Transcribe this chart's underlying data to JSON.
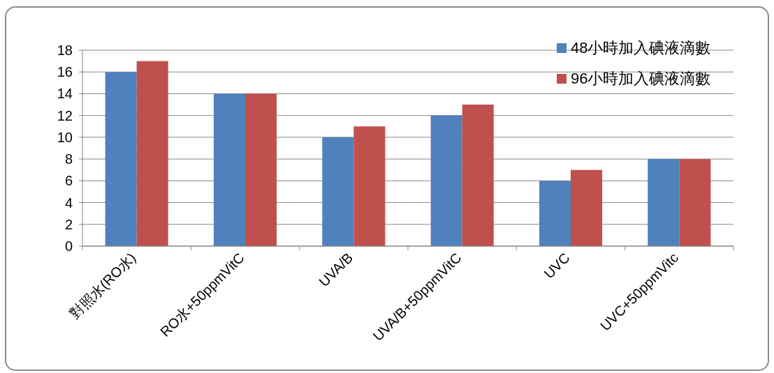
{
  "chart_data": {
    "type": "bar",
    "categories": [
      "對照水(RO水)",
      "RO水+50ppmVitC",
      "UVA/B",
      "UVA/B+50ppmVitC",
      "UVC",
      "UVC+50ppmVitc"
    ],
    "series": [
      {
        "name": "48小時加入碘液滴數",
        "color": "#4f81bd",
        "values": [
          16,
          14,
          10,
          12,
          6,
          8
        ]
      },
      {
        "name": "96小時加入碘液滴數",
        "color": "#c0504d",
        "values": [
          17,
          14,
          11,
          13,
          7,
          8
        ]
      }
    ],
    "ylim": [
      0,
      18
    ],
    "yticks": [
      0,
      2,
      4,
      6,
      8,
      10,
      12,
      14,
      16,
      18
    ],
    "grid": "y",
    "legend": "top right"
  }
}
